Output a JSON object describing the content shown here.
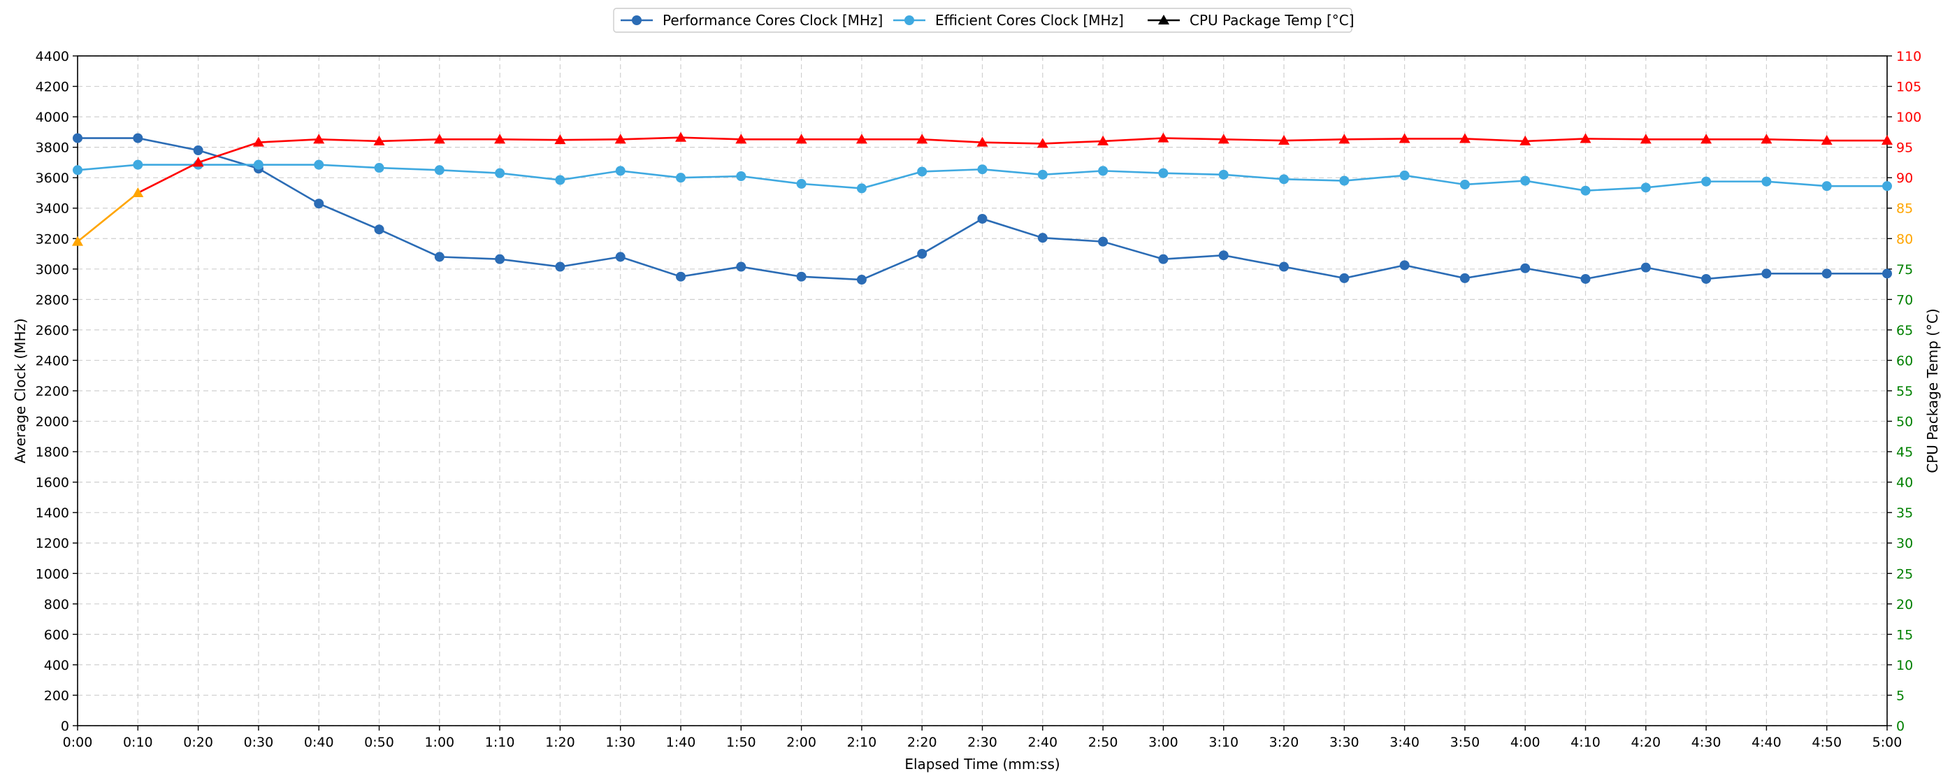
{
  "chart_data": {
    "type": "line",
    "title": "",
    "xlabel": "Elapsed Time (mm:ss)",
    "ylabel": "Average Clock (MHz)",
    "y2label": "CPU Package Temp (°C)",
    "x": [
      "0:00",
      "0:10",
      "0:20",
      "0:30",
      "0:40",
      "0:50",
      "1:00",
      "1:10",
      "1:20",
      "1:30",
      "1:40",
      "1:50",
      "2:00",
      "2:10",
      "2:20",
      "2:30",
      "2:40",
      "2:50",
      "3:00",
      "3:10",
      "3:20",
      "3:30",
      "3:40",
      "3:50",
      "4:00",
      "4:10",
      "4:20",
      "4:30",
      "4:40",
      "4:50",
      "5:00"
    ],
    "ylim": [
      0,
      4400
    ],
    "y_ticks": [
      0,
      200,
      400,
      600,
      800,
      1000,
      1200,
      1400,
      1600,
      1800,
      2000,
      2200,
      2400,
      2600,
      2800,
      3000,
      3200,
      3400,
      3600,
      3800,
      4000,
      4200,
      4400
    ],
    "y2lim": [
      0,
      110
    ],
    "y2_ticks": [
      0,
      5,
      10,
      15,
      20,
      25,
      30,
      35,
      40,
      45,
      50,
      55,
      60,
      65,
      70,
      75,
      80,
      85,
      90,
      95,
      100,
      105,
      110
    ],
    "y2_tick_color_bands": [
      {
        "from": 0,
        "to": 75,
        "color": "#008000"
      },
      {
        "from": 80,
        "to": 85,
        "color": "#FFA500"
      },
      {
        "from": 90,
        "to": 110,
        "color": "#FF0000"
      }
    ],
    "grid": true,
    "legend_position": "top-center",
    "series": [
      {
        "name": "Performance Cores Clock [MHz]",
        "axis": "left",
        "marker": "circle",
        "color": "#2B6CB5",
        "values": [
          3860,
          3860,
          3780,
          3660,
          3430,
          3260,
          3080,
          3065,
          3015,
          3080,
          2950,
          3015,
          2950,
          2930,
          3100,
          3330,
          3205,
          3180,
          3065,
          3090,
          3015,
          2940,
          3025,
          2940,
          3005,
          2935,
          3010,
          2935,
          2970,
          2970,
          2970
        ]
      },
      {
        "name": "Efficient Cores Clock [MHz]",
        "axis": "left",
        "marker": "circle",
        "color": "#3FA9E0",
        "values": [
          3650,
          3685,
          3685,
          3685,
          3685,
          3665,
          3650,
          3630,
          3585,
          3645,
          3600,
          3610,
          3560,
          3530,
          3640,
          3655,
          3620,
          3645,
          3630,
          3620,
          3590,
          3580,
          3615,
          3555,
          3580,
          3515,
          3535,
          3575,
          3575,
          3545,
          3545
        ]
      },
      {
        "name": "CPU Package Temp [°C]",
        "axis": "right",
        "marker": "triangle",
        "color": "#000000",
        "segment_colors": {
          "below_90": "#FFA500",
          "from_90": "#FF0000"
        },
        "values": [
          79.5,
          87.5,
          92.5,
          95.8,
          96.3,
          96.0,
          96.3,
          96.3,
          96.2,
          96.3,
          96.6,
          96.3,
          96.3,
          96.3,
          96.3,
          95.8,
          95.6,
          96.0,
          96.5,
          96.3,
          96.1,
          96.3,
          96.4,
          96.4,
          96.0,
          96.4,
          96.3,
          96.3,
          96.3,
          96.1,
          96.1
        ]
      }
    ]
  }
}
